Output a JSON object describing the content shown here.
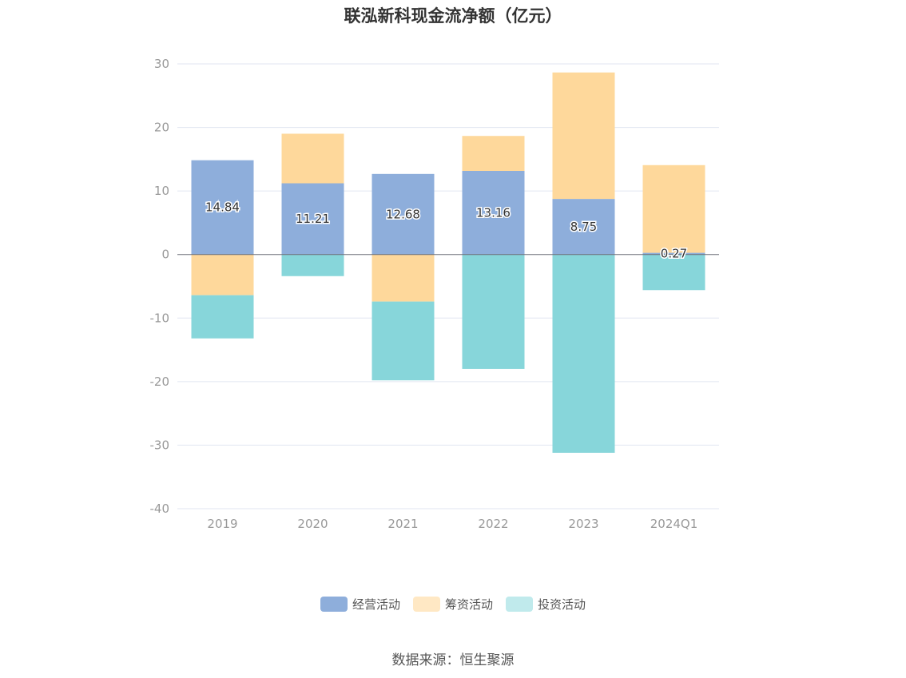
{
  "chart_data": {
    "type": "bar",
    "stacked": true,
    "title": "联泓新科现金流净额（亿元）",
    "categories": [
      "2019",
      "2020",
      "2021",
      "2022",
      "2023",
      "2024Q1"
    ],
    "series": [
      {
        "name": "经营活动",
        "color": "#8eaedb",
        "values": [
          14.84,
          11.21,
          12.68,
          13.16,
          8.75,
          0.27
        ]
      },
      {
        "name": "筹资活动",
        "color": "#fed89b",
        "values": [
          -6.4,
          7.8,
          -7.4,
          5.5,
          19.9,
          13.8
        ]
      },
      {
        "name": "投资活动",
        "color": "#87d6da",
        "values": [
          -6.8,
          -3.4,
          -12.4,
          -18.0,
          -31.2,
          -5.6
        ]
      }
    ],
    "data_labels_series": "经营活动",
    "ylim": [
      -40,
      30
    ],
    "yticks": [
      30,
      20,
      10,
      0,
      -10,
      -20,
      -30,
      -40
    ],
    "grid": true,
    "legend_position": "bottom",
    "legend_colors": {
      "经营活动": "#8eaedb",
      "筹资活动": "#ffe8c4",
      "投资活动": "#c0eaec"
    }
  },
  "source": "数据来源：恒生聚源"
}
